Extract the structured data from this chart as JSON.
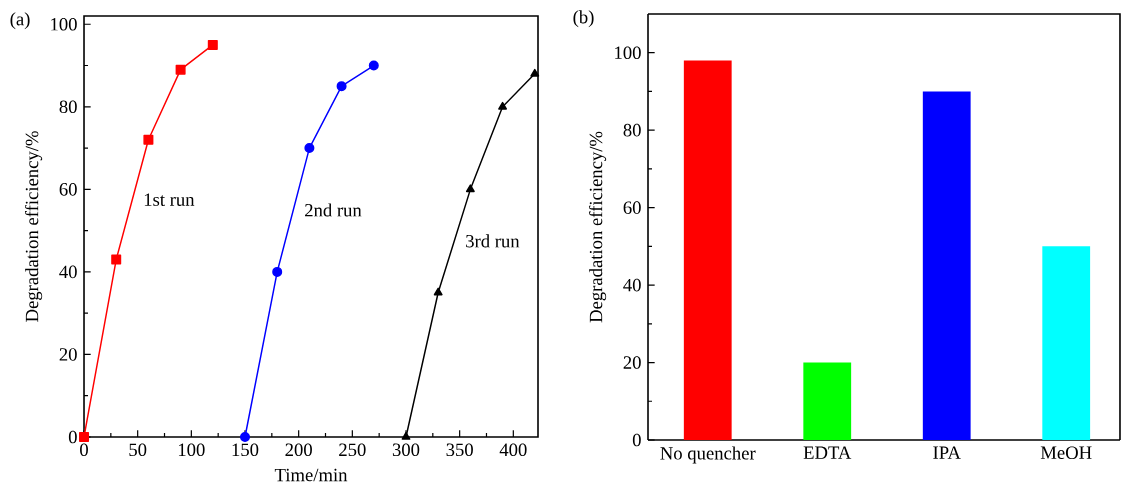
{
  "chart_data": [
    {
      "type": "line",
      "title": "(a)",
      "xlabel": "Time/min",
      "ylabel": "Degradation efficiency/%",
      "xlim": [
        0,
        423
      ],
      "xticks": [
        0,
        50,
        100,
        150,
        200,
        250,
        300,
        350,
        400
      ],
      "ylim": [
        0,
        102
      ],
      "yticks": [
        0,
        20,
        40,
        60,
        80,
        100
      ],
      "series": [
        {
          "name": "1st run",
          "color": "#ff0000",
          "marker": "square",
          "x": [
            0,
            30,
            60,
            90,
            120
          ],
          "values": [
            0,
            43,
            72,
            89,
            95
          ]
        },
        {
          "name": "2nd run",
          "color": "#0000ff",
          "marker": "circle",
          "x": [
            150,
            180,
            210,
            240,
            270
          ],
          "values": [
            0,
            40,
            70,
            85,
            90
          ]
        },
        {
          "name": "3rd run",
          "color": "#000000",
          "marker": "triangle",
          "x": [
            300,
            330,
            360,
            390,
            420
          ],
          "values": [
            0,
            35,
            60,
            80,
            88
          ]
        }
      ]
    },
    {
      "type": "bar",
      "title": "(b)",
      "ylabel": "Degradation efficiency/%",
      "categories": [
        "No quencher",
        "EDTA",
        "IPA",
        "MeOH"
      ],
      "values": [
        98,
        20,
        90,
        50
      ],
      "colors": [
        "#ff0000",
        "#00ff00",
        "#0000ff",
        "#00ffff"
      ],
      "ylim": [
        0,
        110
      ],
      "yticks": [
        0,
        20,
        40,
        60,
        80,
        100
      ]
    }
  ]
}
